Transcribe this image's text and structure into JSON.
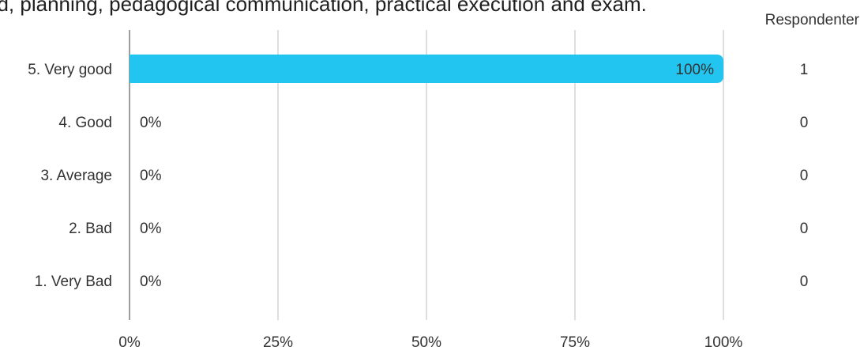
{
  "title": "ed, planning, pedagogical communication, practical execution and exam.",
  "respondents_header": "Respondenter",
  "colors": {
    "bar": "#22c4f0",
    "grid": "#bdbdbd",
    "axis": "#9e9e9e",
    "text": "#333333"
  },
  "chart_data": {
    "type": "bar",
    "orientation": "horizontal",
    "title": "ed, planning, pedagogical communication, practical execution and exam.",
    "categories": [
      "5. Very good",
      "4. Good",
      "3. Average",
      "2. Bad",
      "1. Very Bad"
    ],
    "values": [
      100,
      0,
      0,
      0,
      0
    ],
    "value_labels": [
      "100%",
      "0%",
      "0%",
      "0%",
      "0%"
    ],
    "respondents": [
      "1",
      "0",
      "0",
      "0",
      "0"
    ],
    "xlim": [
      0,
      100
    ],
    "xticks": [
      0,
      25,
      50,
      75,
      100
    ],
    "xtick_labels": [
      "0%",
      "25%",
      "50%",
      "75%",
      "100%"
    ],
    "grid": true,
    "xlabel": "",
    "ylabel": ""
  }
}
